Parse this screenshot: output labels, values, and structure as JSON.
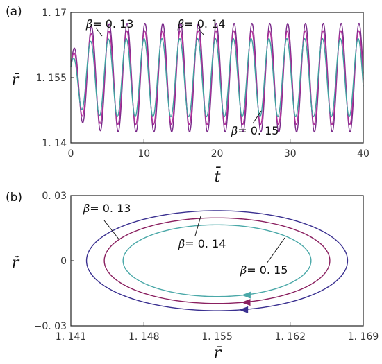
{
  "chart_data": [
    {
      "panel_label": "(a)",
      "type": "line",
      "xlabel": "t̄",
      "ylabel": "r̄",
      "xlim": [
        0,
        40
      ],
      "ylim": [
        1.14,
        1.17
      ],
      "xticks": [
        "0",
        "10",
        "20",
        "30",
        "40"
      ],
      "yticks": [
        "1. 14",
        "1. 155",
        "1. 17"
      ],
      "series": [
        {
          "name": "β̄ = 0. 13",
          "color": "#7a2a8a",
          "start": 1.162,
          "center": 1.155,
          "amplitude": 0.0125,
          "period": 2.44
        },
        {
          "name": "β̄ = 0. 14",
          "color": "#b0309a",
          "start": 1.162,
          "center": 1.155,
          "amplitude": 0.0108,
          "period": 2.44
        },
        {
          "name": "β̄ = 0. 15",
          "color": "#3fa0a0",
          "start": 1.162,
          "center": 1.155,
          "amplitude": 0.009,
          "period": 2.44
        }
      ],
      "annotations": [
        {
          "beta": "β̄",
          "text": "= 0. 13"
        },
        {
          "beta": "β̄",
          "text": "= 0. 14"
        },
        {
          "beta": "β̄",
          "text": "= 0. 15"
        }
      ]
    },
    {
      "panel_label": "(b)",
      "type": "line",
      "xlabel": "r̄",
      "ylabel": "r̄̇",
      "xlim": [
        1.141,
        1.169
      ],
      "ylim": [
        -0.03,
        0.03
      ],
      "xticks": [
        "1. 141",
        "1. 148",
        "1. 155",
        "1. 162",
        "1. 169"
      ],
      "yticks": [
        "0. 03",
        "0",
        "−0. 03"
      ],
      "series": [
        {
          "name": "β̄ = 0. 13",
          "color": "#3a3090",
          "center_x": 1.155,
          "center_y": 0.0,
          "semi_x": 0.0125,
          "semi_y": 0.023
        },
        {
          "name": "β̄ = 0. 14",
          "color": "#8a2060",
          "center_x": 1.155,
          "center_y": 0.0,
          "semi_x": 0.0108,
          "semi_y": 0.0197
        },
        {
          "name": "β̄ = 0. 15",
          "color": "#4aa8a8",
          "center_x": 1.155,
          "center_y": 0.0,
          "semi_x": 0.009,
          "semi_y": 0.0165
        }
      ],
      "annotations": [
        {
          "beta": "β̄",
          "text": "= 0. 13"
        },
        {
          "beta": "β̄",
          "text": "= 0. 14"
        },
        {
          "beta": "β̄",
          "text": "= 0. 15"
        }
      ]
    }
  ]
}
